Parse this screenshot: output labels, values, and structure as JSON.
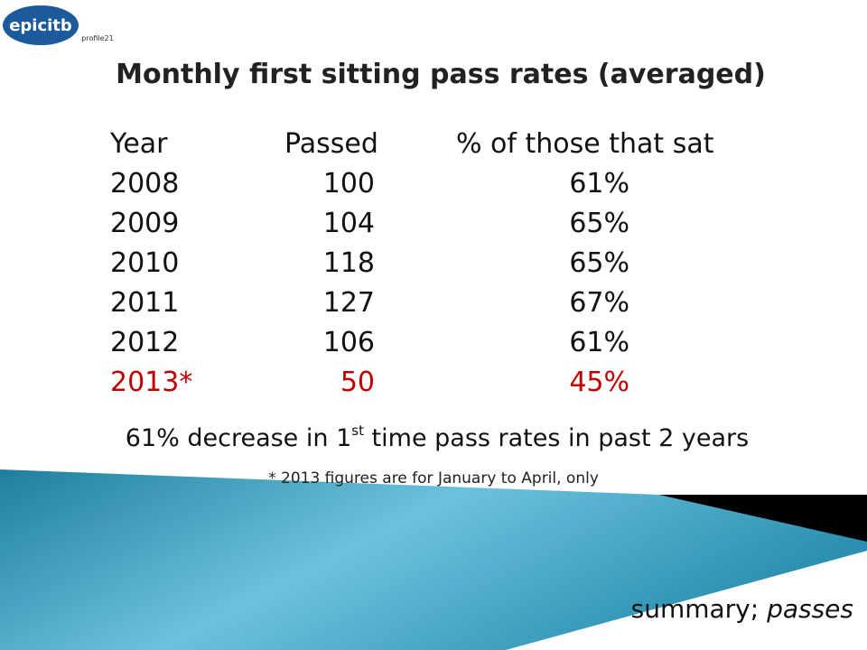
{
  "logos": {
    "left": "epicitb",
    "right": "profile21"
  },
  "title": "Monthly first sitting pass rates (averaged)",
  "table": {
    "header": [
      "Year",
      "Passed",
      "% of those that sat"
    ],
    "rows": [
      [
        "2008",
        "100",
        "61%"
      ],
      [
        "2009",
        "104",
        "65%"
      ],
      [
        "2010",
        "118",
        "65%"
      ],
      [
        "2011",
        "127",
        "67%"
      ],
      [
        "2012",
        "106",
        "61%"
      ],
      [
        "2013*",
        "50",
        "45%"
      ]
    ]
  },
  "note": {
    "before": "61% decrease in 1",
    "sup": "st",
    "after": " time pass rates in past 2 years"
  },
  "footnote": "* 2013 figures are for January to April, only",
  "footer": {
    "plain": "summary; ",
    "italic": "passes"
  }
}
